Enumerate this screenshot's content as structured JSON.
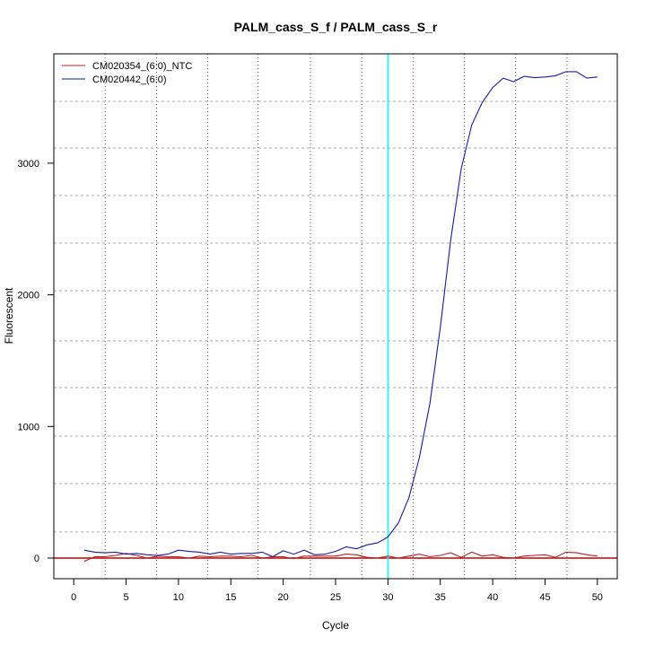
{
  "chart_data": {
    "type": "line",
    "title": "PALM_cass_S_f / PALM_cass_S_r",
    "xlabel": "Cycle",
    "ylabel": "Fluorescent",
    "xlim": [
      -1.9,
      51.9
    ],
    "ylim": [
      -157,
      3831
    ],
    "xticks": [
      0,
      5,
      10,
      15,
      20,
      25,
      30,
      35,
      40,
      45,
      50
    ],
    "yticks": [
      0,
      1000,
      2000,
      3000
    ],
    "grid": true,
    "vgrid": [
      3.0,
      7.9,
      12.8,
      17.6,
      22.6,
      27.5,
      32.4,
      37.3,
      42.2,
      47.1
    ],
    "hgrid": [
      198,
      566,
      927,
      1295,
      1650,
      2031,
      2393,
      2754,
      3115,
      3470
    ],
    "threshold_cycle": 30,
    "threshold_color": "#00ffff",
    "baseline_value": 0,
    "baseline_color": "#cc0000",
    "legend_position": "top-left",
    "x": [
      1,
      2,
      3,
      4,
      5,
      6,
      7,
      8,
      9,
      10,
      11,
      12,
      13,
      14,
      15,
      16,
      17,
      18,
      19,
      20,
      21,
      22,
      23,
      24,
      25,
      26,
      27,
      28,
      29,
      30,
      31,
      32,
      33,
      34,
      35,
      36,
      37,
      38,
      39,
      40,
      41,
      42,
      43,
      44,
      45,
      46,
      47,
      48,
      49,
      50
    ],
    "series": [
      {
        "name": "CM020354_(6:0)_NTC",
        "color": "#b22222",
        "values": [
          -25,
          10,
          10,
          20,
          35,
          20,
          0,
          15,
          10,
          10,
          0,
          15,
          10,
          15,
          15,
          10,
          20,
          0,
          10,
          10,
          -5,
          15,
          15,
          15,
          15,
          30,
          25,
          5,
          0,
          15,
          0,
          15,
          30,
          10,
          20,
          40,
          5,
          45,
          15,
          25,
          5,
          0,
          15,
          20,
          25,
          5,
          45,
          40,
          25,
          15
        ]
      },
      {
        "name": "CM020442_(6:0)",
        "color": "#1a1aa6",
        "values": [
          60,
          45,
          40,
          45,
          30,
          35,
          25,
          20,
          30,
          60,
          50,
          45,
          30,
          45,
          30,
          35,
          35,
          45,
          10,
          55,
          30,
          60,
          25,
          30,
          50,
          85,
          70,
          100,
          115,
          160,
          266,
          457,
          763,
          1172,
          1750,
          2420,
          2960,
          3290,
          3460,
          3575,
          3646,
          3620,
          3660,
          3650,
          3655,
          3665,
          3695,
          3695,
          3646,
          3655
        ]
      }
    ]
  }
}
